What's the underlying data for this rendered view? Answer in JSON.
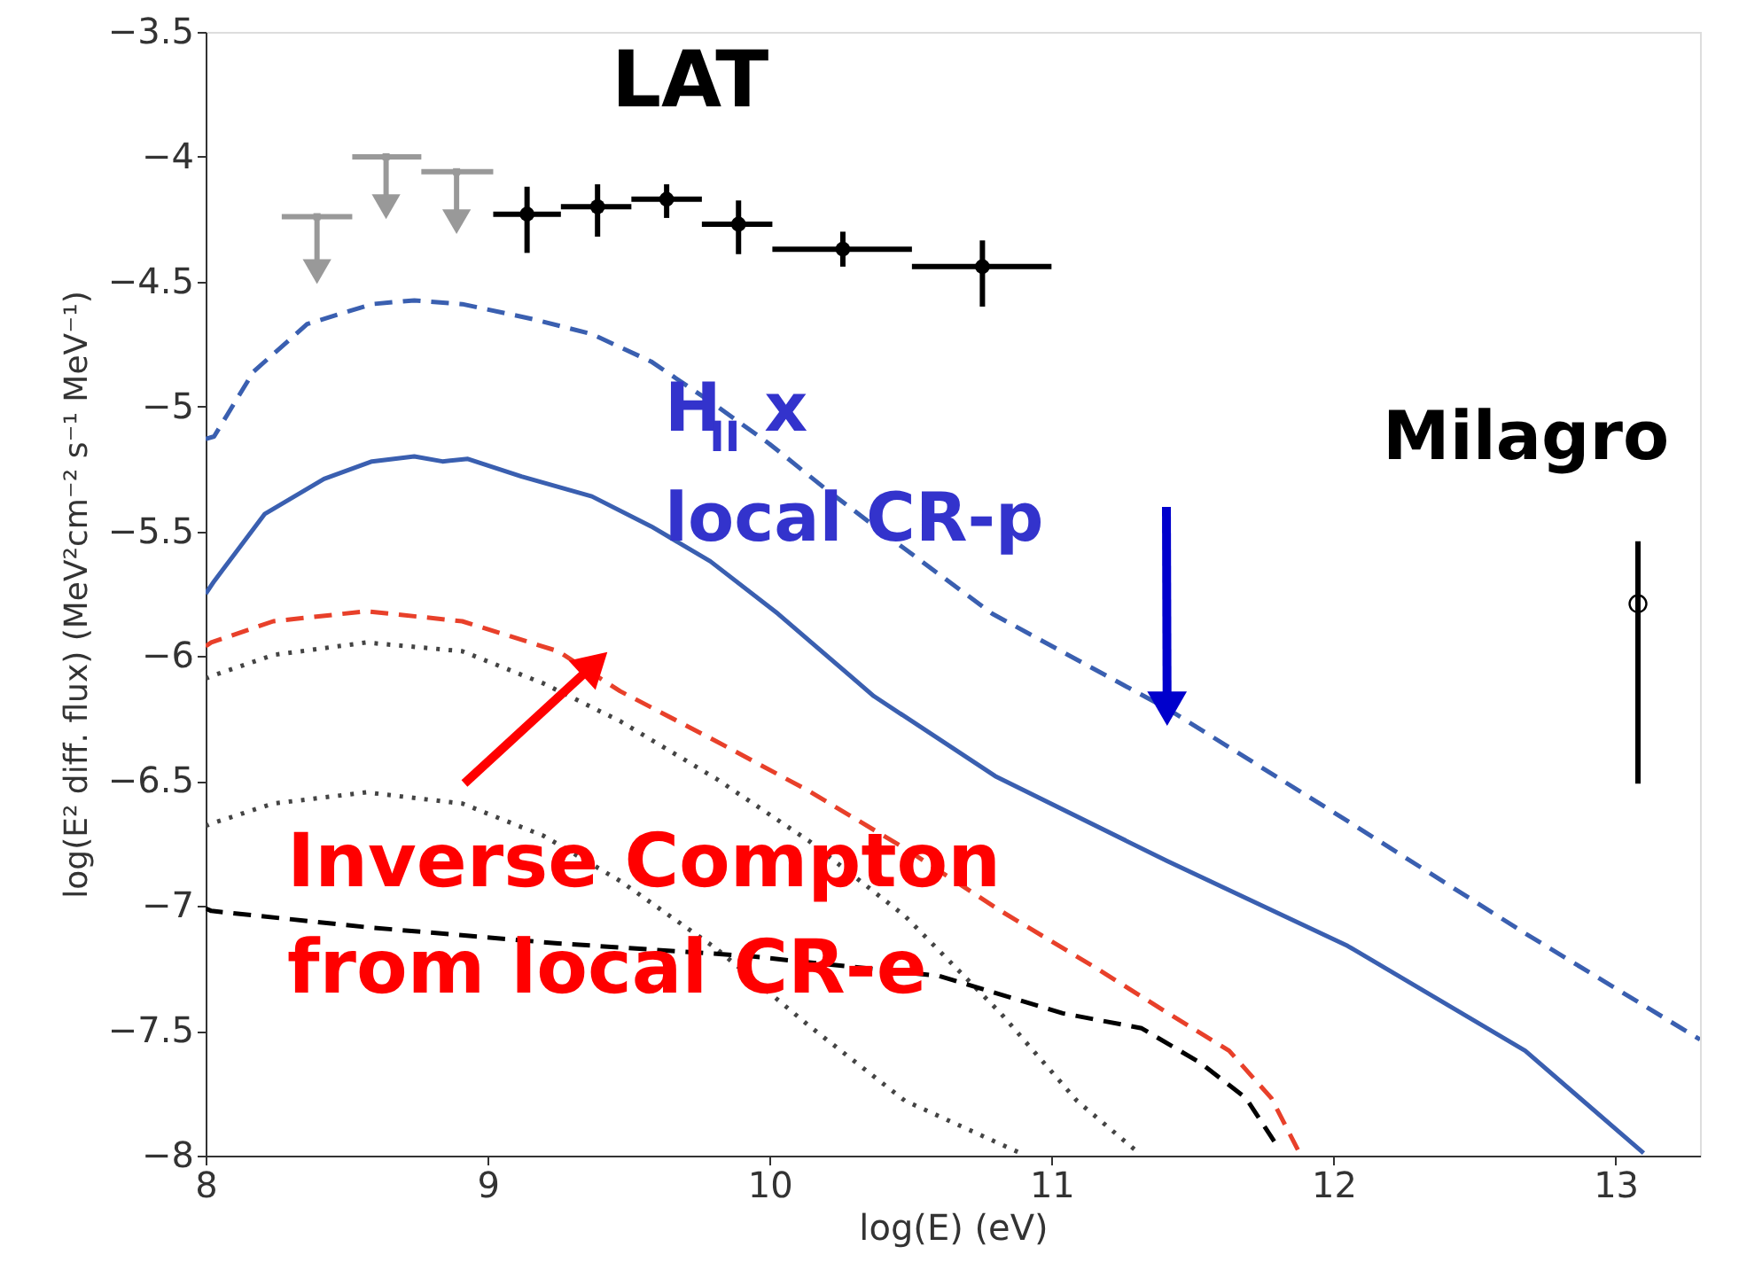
{
  "chart_data": {
    "type": "line",
    "xlabel": "log(E) (eV)",
    "ylabel": "log(E² diff. flux) (MeV²cm⁻² s⁻¹ MeV⁻¹)",
    "xlim": [
      8,
      13.3
    ],
    "xticks": [
      8,
      9,
      10,
      11,
      12,
      13
    ],
    "ylim": [
      -8,
      -3.5
    ],
    "yticks": [
      -8,
      -7.5,
      -7,
      -6.5,
      -6,
      -5.5,
      -5,
      -4.5,
      -4,
      -3.5
    ],
    "grid": false,
    "annotations": [
      "LAT",
      {
        "text": "H$_{II}$ x\nlocal CR-p",
        "x": 11.41,
        "y": -6.21
      },
      {
        "text": "Inverse Compton\nfrom local CR-e",
        "x": 9.38,
        "y": -6.03
      },
      "Milagro"
    ],
    "series": [
      {
        "type": "scatter",
        "marker": "square",
        "color": "#999999",
        "x": [
          8.395,
          8.64,
          8.89
        ],
        "values": [
          -4.24,
          -4.0,
          -4.06
        ],
        "errors": [
          [
            -4.46,
            -4.24
          ],
          [
            -4.2,
            -4.0
          ],
          [
            -4.26,
            -4.06
          ]
        ],
        "xerrors": [
          [
            8.27,
            8.52
          ],
          [
            8.52,
            8.765
          ],
          [
            8.765,
            9.02
          ]
        ]
      },
      {
        "type": "scatter",
        "marker": "circle",
        "color": "#000000",
        "x": [
          9.14,
          9.39,
          9.635,
          9.89,
          10.26,
          10.755
        ],
        "values": [
          -4.23,
          -4.2,
          -4.17,
          -4.27,
          -4.37,
          -4.44
        ],
        "errors": [
          [
            -4.385,
            -4.12
          ],
          [
            -4.32,
            -4.11
          ],
          [
            -4.245,
            -4.11
          ],
          [
            -4.39,
            -4.175
          ],
          [
            -4.44,
            -4.3
          ],
          [
            -4.6,
            -4.335
          ]
        ],
        "xerrors": [
          [
            9.02,
            9.26
          ],
          [
            9.26,
            9.51
          ],
          [
            9.51,
            9.76
          ],
          [
            9.76,
            10.01
          ],
          [
            10.01,
            10.505
          ],
          [
            10.505,
            11.0
          ]
        ]
      },
      {
        "type": "scatter",
        "marker": "open_circle",
        "color": "#000000",
        "x": [
          13.08
        ],
        "values": [
          -5.79
        ],
        "errors": [
          [
            -6.51,
            -5.54
          ]
        ]
      },
      {
        "type": "line",
        "line_style": "dashed",
        "color": "#3a5fb0",
        "x": [
          8.0,
          8.03,
          8.17,
          8.36,
          8.59,
          8.74,
          8.91,
          9.16,
          9.37,
          9.58,
          9.79,
          10.0,
          10.21,
          10.42,
          10.79,
          11.41,
          12.05,
          12.68,
          13.3
        ],
        "values": [
          -5.13,
          -5.12,
          -4.86,
          -4.67,
          -4.59,
          -4.575,
          -4.59,
          -4.65,
          -4.71,
          -4.82,
          -4.98,
          -5.15,
          -5.34,
          -5.52,
          -5.83,
          -6.21,
          -6.66,
          -7.11,
          -7.535
        ]
      },
      {
        "type": "line",
        "line_style": "solid",
        "color": "#3a5fb0",
        "x": [
          8.0,
          8.03,
          8.21,
          8.42,
          8.59,
          8.74,
          8.84,
          8.93,
          9.12,
          9.37,
          9.58,
          9.79,
          10.03,
          10.37,
          10.8,
          11.41,
          12.05,
          12.68,
          13.1
        ],
        "values": [
          -5.75,
          -5.7,
          -5.43,
          -5.29,
          -5.22,
          -5.2,
          -5.22,
          -5.21,
          -5.28,
          -5.36,
          -5.48,
          -5.62,
          -5.83,
          -6.16,
          -6.48,
          -6.82,
          -7.16,
          -7.58,
          -7.99
        ]
      },
      {
        "type": "line",
        "line_style": "dashed",
        "color": "#e8402a",
        "x": [
          8.0,
          8.02,
          8.24,
          8.57,
          8.91,
          9.25,
          9.47,
          9.81,
          10.14,
          10.48,
          10.82,
          11.16,
          11.4,
          11.63,
          11.78,
          11.88
        ],
        "values": [
          -5.96,
          -5.945,
          -5.86,
          -5.82,
          -5.86,
          -5.98,
          -6.14,
          -6.34,
          -6.54,
          -6.77,
          -7.02,
          -7.25,
          -7.42,
          -7.58,
          -7.77,
          -7.99
        ]
      },
      {
        "type": "line",
        "line_style": "dotted",
        "color": "#444444",
        "x": [
          8.0,
          8.02,
          8.24,
          8.57,
          8.91,
          9.2,
          9.47,
          9.81,
          10.14,
          10.48,
          10.82,
          11.09,
          11.31
        ],
        "values": [
          -6.09,
          -6.08,
          -5.995,
          -5.945,
          -5.98,
          -6.11,
          -6.26,
          -6.49,
          -6.74,
          -7.04,
          -7.43,
          -7.78,
          -7.99
        ]
      },
      {
        "type": "line",
        "line_style": "dotted",
        "color": "#444444",
        "x": [
          8.0,
          8.02,
          8.24,
          8.57,
          8.91,
          9.2,
          9.47,
          9.81,
          10.14,
          10.48,
          10.89
        ],
        "values": [
          -6.68,
          -6.67,
          -6.59,
          -6.545,
          -6.59,
          -6.72,
          -6.9,
          -7.17,
          -7.48,
          -7.78,
          -7.99
        ]
      },
      {
        "type": "line",
        "line_style": "dashed",
        "color": "#000000",
        "x": [
          8.0,
          8.02,
          8.57,
          9.25,
          9.92,
          10.6,
          11.04,
          11.32,
          11.53,
          11.69,
          11.8
        ],
        "values": [
          -7.01,
          -7.02,
          -7.085,
          -7.15,
          -7.2,
          -7.28,
          -7.43,
          -7.49,
          -7.63,
          -7.77,
          -7.96
        ]
      }
    ]
  }
}
